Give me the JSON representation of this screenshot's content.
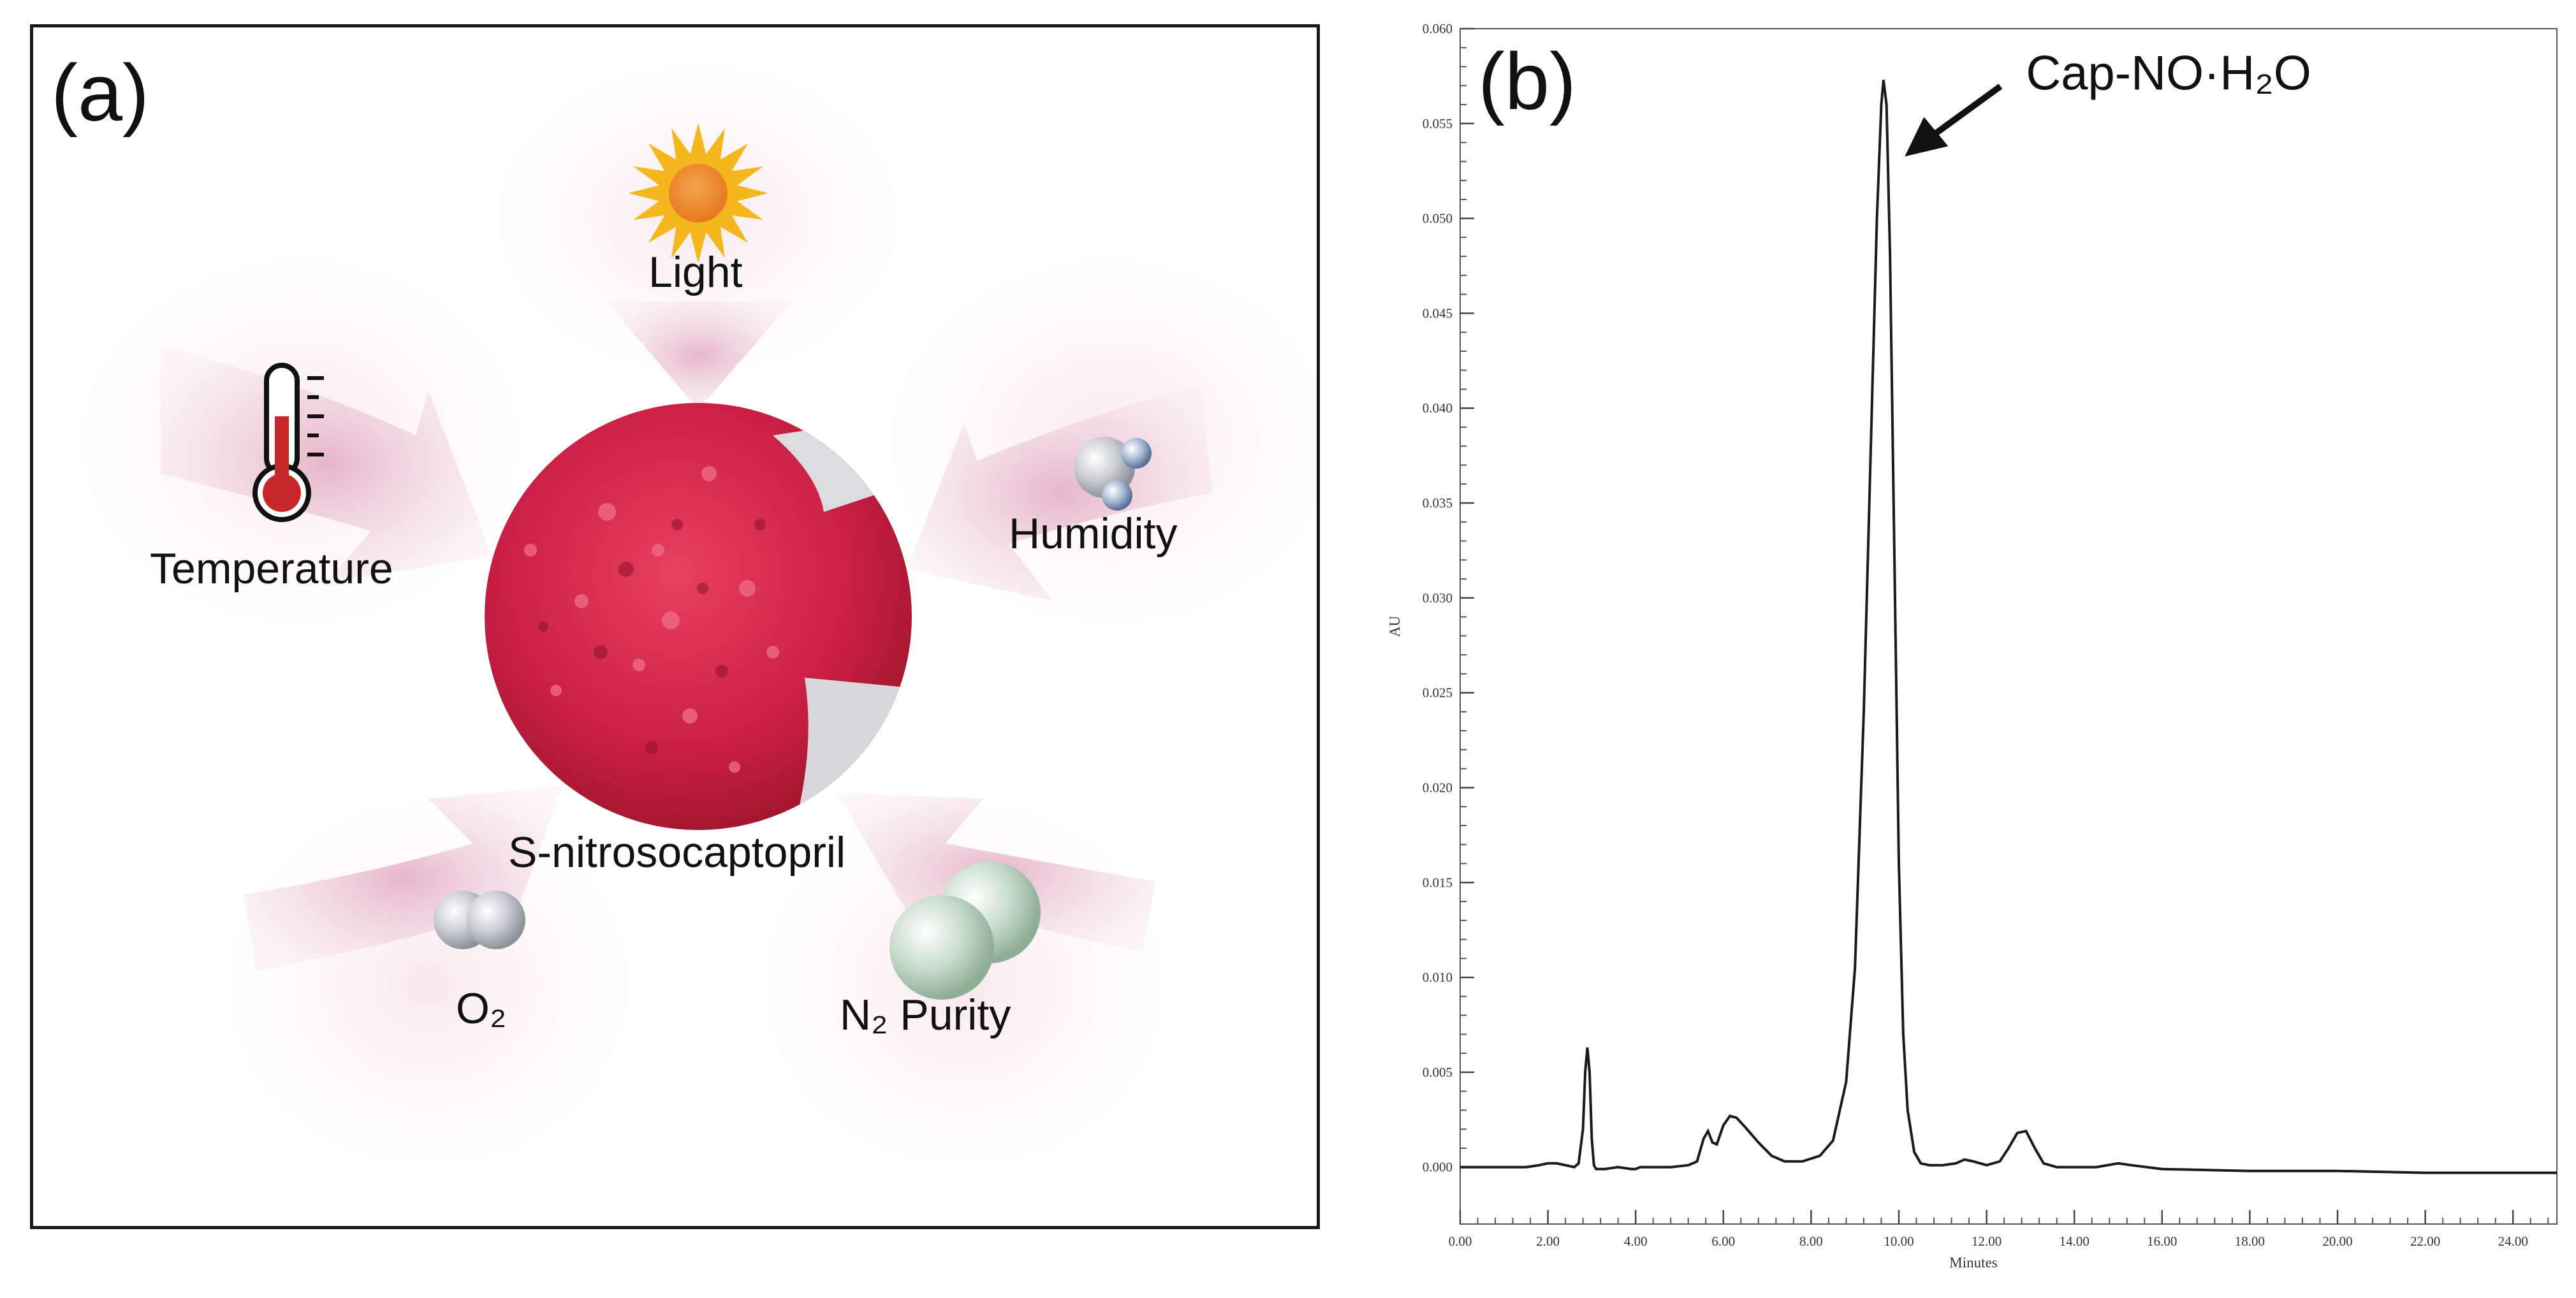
{
  "panel_a": {
    "letter": "(a)",
    "center_label": "S-nitrosocaptopril",
    "factors": [
      {
        "name": "light",
        "label": "Light",
        "icon": "sun-icon"
      },
      {
        "name": "temperature",
        "label": "Temperature",
        "icon": "thermometer-icon"
      },
      {
        "name": "humidity",
        "label": "Humidity",
        "icon": "water-molecule-icon"
      },
      {
        "name": "o2",
        "label": "O₂",
        "icon": "oxygen-molecule-icon"
      },
      {
        "name": "n2-purity",
        "label": "N₂ Purity",
        "icon": "nitrogen-molecule-icon"
      }
    ],
    "colors": {
      "arrow": "#e7bccd",
      "crystal": "#d3284e",
      "sun_ray": "#f4b81e",
      "sun_core": "#ef8a2a",
      "thermometer_fill": "#c62828"
    }
  },
  "panel_b": {
    "letter": "(b)",
    "annotation": "Cap-NO·H₂O"
  },
  "chart_data": {
    "type": "line",
    "title": "",
    "xlabel": "Minutes",
    "ylabel": "AU",
    "xlim": [
      0,
      25
    ],
    "ylim": [
      -0.003,
      0.06
    ],
    "x_ticks": [
      0,
      2,
      4,
      6,
      8,
      10,
      12,
      14,
      16,
      18,
      20,
      22,
      24
    ],
    "x_tick_labels": [
      "0.00",
      "2.00",
      "4.00",
      "6.00",
      "8.00",
      "10.00",
      "12.00",
      "14.00",
      "16.00",
      "18.00",
      "20.00",
      "22.00",
      "24.00"
    ],
    "y_ticks": [
      0.0,
      0.005,
      0.01,
      0.015,
      0.02,
      0.025,
      0.03,
      0.035,
      0.04,
      0.045,
      0.05,
      0.055,
      0.06
    ],
    "y_tick_labels": [
      "0.000",
      "0.005",
      "0.010",
      "0.015",
      "0.020",
      "0.025",
      "0.030",
      "0.035",
      "0.040",
      "0.045",
      "0.050",
      "0.055",
      "0.060"
    ],
    "series": [
      {
        "name": "chromatogram",
        "x": [
          0.0,
          1.5,
          1.8,
          2.0,
          2.2,
          2.4,
          2.6,
          2.7,
          2.8,
          2.85,
          2.9,
          2.95,
          3.0,
          3.05,
          3.1,
          3.3,
          3.6,
          3.9,
          4.0,
          4.1,
          4.4,
          4.8,
          5.2,
          5.4,
          5.55,
          5.65,
          5.75,
          5.85,
          6.0,
          6.15,
          6.3,
          6.5,
          6.8,
          7.1,
          7.4,
          7.8,
          8.2,
          8.5,
          8.8,
          9.0,
          9.2,
          9.35,
          9.5,
          9.6,
          9.65,
          9.72,
          9.8,
          9.9,
          10.0,
          10.1,
          10.2,
          10.35,
          10.5,
          10.7,
          11.0,
          11.3,
          11.5,
          11.7,
          12.0,
          12.3,
          12.5,
          12.7,
          12.9,
          13.1,
          13.3,
          13.6,
          14.0,
          14.5,
          15.0,
          15.3,
          16.0,
          18.0,
          20.0,
          22.0,
          24.0,
          25.0
        ],
        "values": [
          0.0,
          0.0,
          0.0001,
          0.0002,
          0.0002,
          0.0001,
          0.0,
          0.0002,
          0.002,
          0.005,
          0.0063,
          0.005,
          0.0015,
          0.0001,
          -0.0001,
          -0.0001,
          0.0,
          -0.0001,
          -0.0001,
          0.0,
          0.0,
          0.0,
          0.0001,
          0.0003,
          0.0015,
          0.0019,
          0.0013,
          0.0012,
          0.0022,
          0.0027,
          0.0026,
          0.0021,
          0.0013,
          0.0006,
          0.0003,
          0.0003,
          0.0006,
          0.0014,
          0.0045,
          0.0105,
          0.024,
          0.037,
          0.05,
          0.056,
          0.0573,
          0.056,
          0.048,
          0.032,
          0.016,
          0.007,
          0.003,
          0.0008,
          0.0002,
          0.0001,
          0.0001,
          0.0002,
          0.0004,
          0.0003,
          0.0001,
          0.0003,
          0.001,
          0.0018,
          0.0019,
          0.001,
          0.0002,
          0.0,
          0.0,
          0.0,
          0.0002,
          0.0001,
          -0.0001,
          -0.0002,
          -0.0002,
          -0.0003,
          -0.0003,
          -0.0003
        ]
      }
    ],
    "annotations": [
      {
        "text": "Cap-NO·H₂O",
        "x": 9.7,
        "y": 0.0573
      }
    ],
    "grid": false
  }
}
